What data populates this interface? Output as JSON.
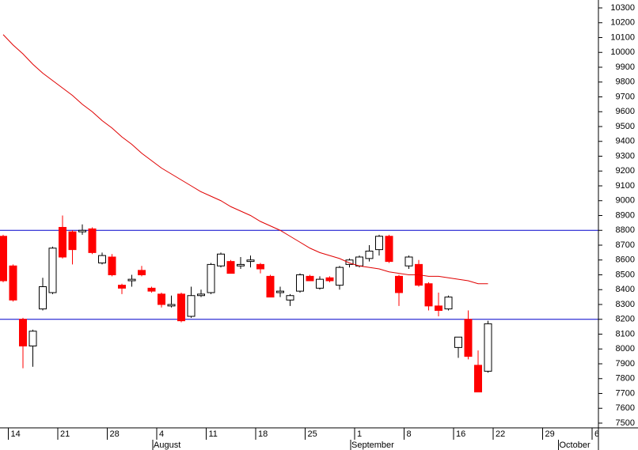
{
  "chart_data": {
    "type": "candlestick",
    "categories": [
      null,
      "14",
      null,
      null,
      null,
      null,
      "21",
      null,
      null,
      null,
      null,
      "28",
      null,
      null,
      null,
      null,
      "4",
      null,
      null,
      null,
      null,
      "11",
      null,
      null,
      null,
      null,
      "18",
      null,
      null,
      null,
      null,
      "25",
      null,
      null,
      null,
      null,
      "1",
      null,
      null,
      null,
      null,
      "8",
      null,
      null,
      null,
      null,
      "16",
      null,
      null,
      null,
      "22",
      null,
      null,
      null,
      null,
      "29",
      null,
      null,
      null,
      null,
      "6"
    ],
    "open": [
      8760,
      8560,
      8200,
      8020,
      8270,
      8380,
      8820,
      8790,
      8790,
      8810,
      8580,
      8620,
      8430,
      8460,
      8530,
      8410,
      8370,
      8290,
      8370,
      8220,
      8360,
      8380,
      8560,
      8590,
      8560,
      8590,
      8570,
      8490,
      8380,
      8330,
      8390,
      8490,
      8410,
      8480,
      8430,
      8570,
      8560,
      8610,
      8670,
      8760,
      8490,
      8560,
      8570,
      8440,
      8290,
      8270,
      8010,
      8200,
      7890,
      7850,
      null,
      null,
      null,
      null,
      null,
      null,
      null,
      null,
      null,
      null,
      null
    ],
    "high": [
      8770,
      8570,
      8210,
      8130,
      8480,
      8690,
      8900,
      8800,
      8840,
      8820,
      8650,
      8640,
      8440,
      8500,
      8560,
      8420,
      8380,
      8360,
      8380,
      8420,
      8400,
      8580,
      8650,
      8600,
      8620,
      8630,
      8580,
      8500,
      8420,
      8370,
      8510,
      8500,
      8490,
      8490,
      8560,
      8610,
      8630,
      8700,
      8770,
      8770,
      8500,
      8630,
      8600,
      8450,
      8380,
      8360,
      8080,
      8260,
      7990,
      8190,
      null,
      null,
      null,
      null,
      null,
      null,
      null,
      null,
      null,
      null,
      null
    ],
    "low": [
      8450,
      8320,
      7870,
      7880,
      8260,
      8370,
      8610,
      8570,
      8770,
      8640,
      8570,
      8490,
      8370,
      8420,
      8490,
      8380,
      8280,
      8280,
      8180,
      8210,
      8350,
      8370,
      8550,
      8510,
      8540,
      8550,
      8510,
      8350,
      8350,
      8290,
      8380,
      8460,
      8400,
      8450,
      8400,
      8550,
      8550,
      8590,
      8630,
      8580,
      8290,
      8540,
      8420,
      8260,
      8220,
      8260,
      7940,
      7930,
      7710,
      7840,
      null,
      null,
      null,
      null,
      null,
      null,
      null,
      null,
      null,
      null,
      null
    ],
    "close": [
      8460,
      8330,
      8020,
      8120,
      8420,
      8680,
      8620,
      8670,
      8800,
      8650,
      8630,
      8500,
      8410,
      8470,
      8500,
      8390,
      8300,
      8300,
      8190,
      8360,
      8370,
      8570,
      8640,
      8510,
      8570,
      8600,
      8540,
      8350,
      8390,
      8360,
      8500,
      8460,
      8470,
      8460,
      8550,
      8600,
      8620,
      8660,
      8760,
      8590,
      8380,
      8620,
      8430,
      8290,
      8260,
      8350,
      8080,
      7950,
      7710,
      8170,
      null,
      null,
      null,
      null,
      null,
      null,
      null,
      null,
      null,
      null,
      null
    ],
    "up_color": "#ffffff",
    "down_color": "#ff0000",
    "outline_color": "#000000",
    "ma": {
      "color": "#e00000",
      "values": [
        10120,
        10050,
        9990,
        9920,
        9860,
        9810,
        9760,
        9710,
        9650,
        9600,
        9540,
        9490,
        9430,
        9380,
        9320,
        9270,
        9220,
        9180,
        9140,
        9100,
        9060,
        9030,
        9000,
        8960,
        8930,
        8900,
        8860,
        8830,
        8800,
        8760,
        8720,
        8680,
        8650,
        8630,
        8610,
        8580,
        8560,
        8550,
        8540,
        8520,
        8510,
        8500,
        8500,
        8490,
        8490,
        8480,
        8470,
        8460,
        8440,
        8440,
        null,
        null,
        null,
        null,
        null,
        null,
        null,
        null,
        null,
        null,
        null
      ]
    },
    "hlines": {
      "color": "#0000cc",
      "values": [
        8800,
        8200
      ]
    },
    "months": [
      {
        "label": "August",
        "index": 16
      },
      {
        "label": "September",
        "index": 36
      },
      {
        "label": "October",
        "index": 57
      }
    ],
    "ylim": [
      7500,
      10300
    ],
    "yticks": [
      7500,
      7600,
      7700,
      7800,
      7900,
      8000,
      8100,
      8200,
      8300,
      8400,
      8500,
      8600,
      8700,
      8800,
      8900,
      9000,
      9100,
      9200,
      9300,
      9400,
      9500,
      9600,
      9700,
      9800,
      9900,
      10000,
      10100,
      10200,
      10300
    ]
  }
}
